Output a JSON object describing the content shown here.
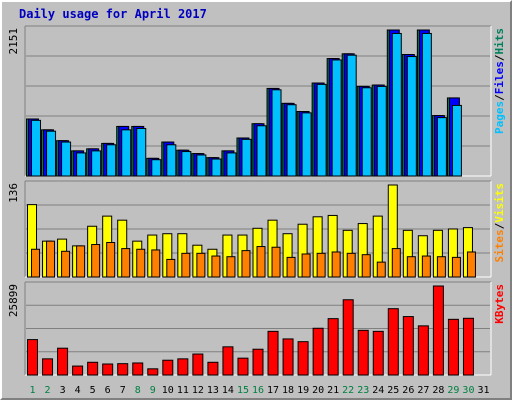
{
  "title": "Daily usage for April 2017",
  "colors": {
    "hits": "#00805c",
    "files": "#0000ff",
    "pages": "#00c0ff",
    "visits": "#ffff00",
    "sites": "#ff8000",
    "kbytes": "#ff0000",
    "weekend": "#008040",
    "weekday": "#000000"
  },
  "chart_data": {
    "type": "bar",
    "categories": [
      "1",
      "2",
      "3",
      "4",
      "5",
      "6",
      "7",
      "8",
      "9",
      "10",
      "11",
      "12",
      "13",
      "14",
      "15",
      "16",
      "17",
      "18",
      "19",
      "20",
      "21",
      "22",
      "23",
      "24",
      "25",
      "26",
      "27",
      "28",
      "29",
      "30",
      "31"
    ],
    "weekend_days": [
      "1",
      "2",
      "8",
      "9",
      "15",
      "16",
      "22",
      "23",
      "29",
      "30"
    ],
    "panels": [
      {
        "name": "hits-files-pages",
        "max_label": "2151",
        "ymax": 2151,
        "series_labels": [
          "Pages",
          "Files",
          "Hits"
        ],
        "series": [
          {
            "name": "Hits",
            "values": [
              840,
              680,
              520,
              370,
              400,
              480,
              730,
              730,
              260,
              500,
              380,
              330,
              270,
              370,
              560,
              770,
              1290,
              1070,
              950,
              1370,
              1730,
              1800,
              1320,
              1340,
              2151,
              1790,
              2151,
              890,
              1150,
              0,
              0
            ]
          },
          {
            "name": "Files",
            "values": [
              840,
              680,
              520,
              370,
              400,
              480,
              730,
              730,
              260,
              500,
              380,
              330,
              270,
              370,
              560,
              770,
              1290,
              1070,
              950,
              1370,
              1730,
              1800,
              1320,
              1340,
              2151,
              1790,
              2151,
              890,
              1150,
              0,
              0
            ]
          },
          {
            "name": "Pages",
            "values": [
              820,
              660,
              500,
              340,
              370,
              460,
              680,
              700,
              240,
              460,
              360,
              310,
              250,
              340,
              540,
              740,
              1270,
              1050,
              930,
              1350,
              1710,
              1780,
              1300,
              1320,
              2100,
              1760,
              2100,
              860,
              1040,
              0,
              0
            ]
          }
        ]
      },
      {
        "name": "visits-sites",
        "max_label": "136",
        "ymax": 136,
        "series_labels": [
          "Sites",
          "Visits"
        ],
        "series": [
          {
            "name": "Visits",
            "values": [
              107,
              53,
              56,
              46,
              75,
              90,
              84,
              53,
              62,
              64,
              64,
              47,
              41,
              62,
              62,
              72,
              84,
              64,
              78,
              89,
              91,
              69,
              79,
              90,
              136,
              69,
              61,
              69,
              71,
              73,
              0
            ]
          },
          {
            "name": "Sites",
            "values": [
              41,
              53,
              38,
              46,
              48,
              51,
              42,
              41,
              40,
              26,
              35,
              35,
              31,
              30,
              39,
              45,
              44,
              29,
              34,
              35,
              37,
              35,
              33,
              22,
              42,
              30,
              31,
              30,
              29,
              37,
              0
            ]
          }
        ]
      },
      {
        "name": "kbytes",
        "max_label": "25899",
        "ymax": 25899,
        "series_labels": [
          "KBytes"
        ],
        "series": [
          {
            "name": "KBytes",
            "values": [
              10300,
              4700,
              7800,
              2600,
              3700,
              3200,
              3300,
              3500,
              1800,
              4300,
              4700,
              6100,
              3700,
              8200,
              4900,
              7500,
              12700,
              10500,
              9700,
              13600,
              16400,
              21900,
              13000,
              12700,
              19300,
              17000,
              14300,
              25899,
              16200,
              16500,
              0
            ]
          }
        ]
      }
    ]
  }
}
